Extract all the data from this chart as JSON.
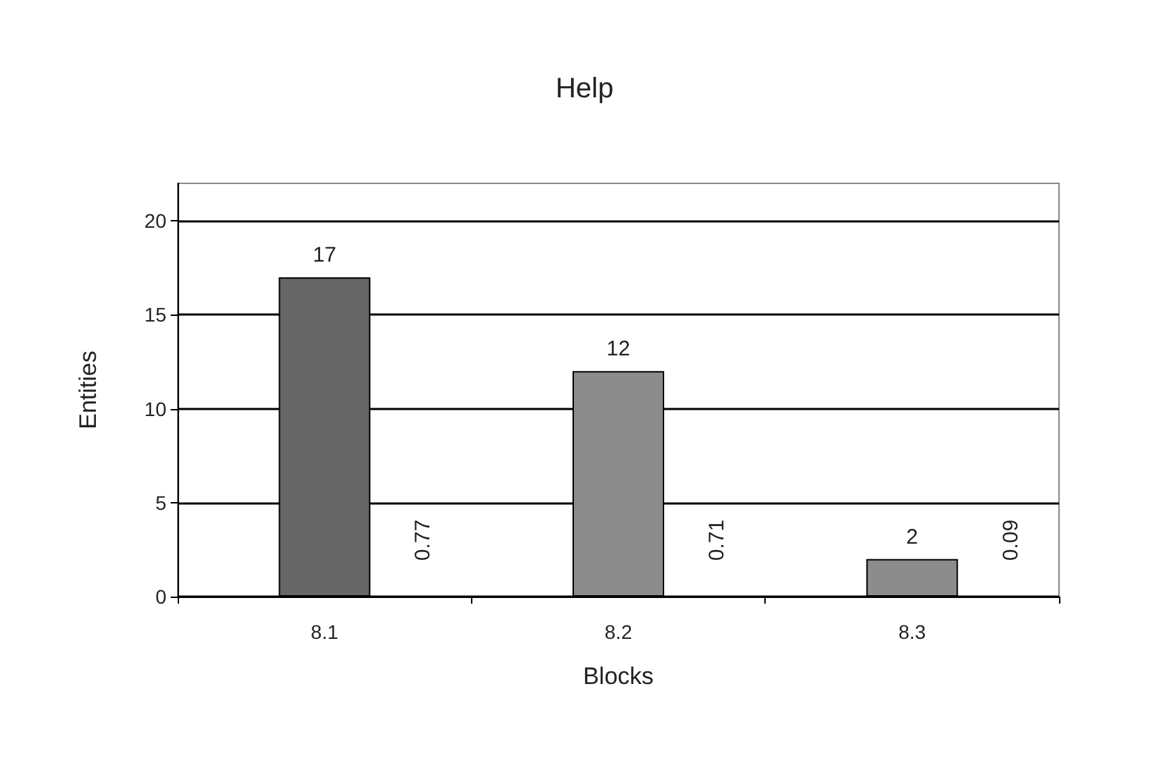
{
  "chart_data": {
    "type": "bar",
    "title": "Help",
    "xlabel": "Blocks",
    "ylabel": "Entities",
    "categories": [
      "8.1",
      "8.2",
      "8.3"
    ],
    "series": [
      {
        "colors": [
          "#666666",
          "#8c8c8c",
          "#8c8c8c"
        ],
        "values": [
          17,
          12,
          2
        ]
      }
    ],
    "annotations": [
      "0.77",
      "0.71",
      "0.09"
    ],
    "ylim": [
      0,
      22
    ],
    "yticks": [
      0,
      5,
      10,
      15,
      20
    ],
    "grid": "y",
    "data_labels": true
  }
}
